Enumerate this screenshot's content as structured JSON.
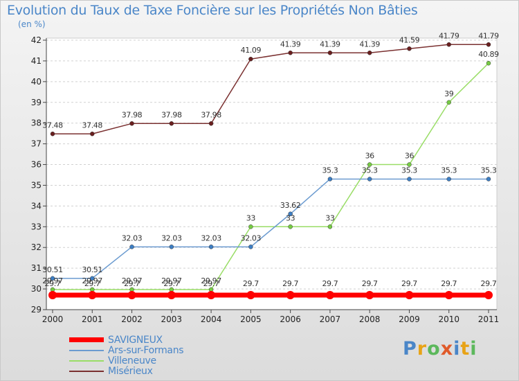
{
  "header": {
    "title": "Evolution du Taux de Taxe Foncière sur les Propriétés Non Bâties",
    "unit": "(en %)"
  },
  "logo": {
    "text": "Proxiti",
    "colors": [
      "#4a86c8",
      "#e8a317",
      "#5cb85c",
      "#e05a2a",
      "#4a86c8",
      "#e8a317",
      "#5cb85c"
    ]
  },
  "chart_data": {
    "type": "line",
    "x": [
      "2000",
      "2001",
      "2002",
      "2003",
      "2004",
      "2005",
      "2006",
      "2007",
      "2008",
      "2009",
      "2010",
      "2011"
    ],
    "ylim": [
      29,
      42
    ],
    "yticks": [
      29,
      30,
      31,
      32,
      33,
      34,
      35,
      36,
      37,
      38,
      39,
      40,
      41,
      42
    ],
    "grid": "horizontal-dashed",
    "legend_position": "bottom-left",
    "series": [
      {
        "name": "SAVIGNEUX",
        "color": "#ff0000",
        "values": [
          29.7,
          29.7,
          29.7,
          29.7,
          29.7,
          29.7,
          29.7,
          29.7,
          29.7,
          29.7,
          29.7,
          29.7
        ],
        "labels": [
          "29.7",
          "29.7",
          "29.7",
          "29.7",
          "29.7",
          "29.7",
          "29.7",
          "29.7",
          "29.7",
          "29.7",
          "29.7",
          "29.7"
        ]
      },
      {
        "name": "Ars-sur-Formans",
        "color": "#6b9bd0",
        "values": [
          30.51,
          30.51,
          32.03,
          32.03,
          32.03,
          32.03,
          33.62,
          35.3,
          35.3,
          35.3,
          35.3,
          35.3
        ],
        "labels": [
          "30.51",
          "30.51",
          "32.03",
          "32.03",
          "32.03",
          "32.03",
          "33.62",
          "35.3",
          "35.3",
          "35.3",
          "35.3",
          "35.3"
        ]
      },
      {
        "name": "Villeneuve",
        "color": "#99dd66",
        "values": [
          29.97,
          29.97,
          29.97,
          29.97,
          29.97,
          33,
          33,
          33,
          36,
          36,
          39,
          40.89
        ],
        "labels": [
          "29.97",
          "29.97",
          "29.97",
          "29.97",
          "29.97",
          "33",
          "33",
          "33",
          "36",
          "36",
          "39",
          "40.89"
        ]
      },
      {
        "name": "Misérieux",
        "color": "#7a3030",
        "values": [
          37.48,
          37.48,
          37.98,
          37.98,
          37.98,
          41.09,
          41.39,
          41.39,
          41.39,
          41.59,
          41.79,
          41.79
        ],
        "labels": [
          "37.48",
          "37.48",
          "37.98",
          "37.98",
          "37.98",
          "41.09",
          "41.39",
          "41.39",
          "41.39",
          "41.59",
          "41.79",
          "41.79"
        ]
      }
    ]
  }
}
